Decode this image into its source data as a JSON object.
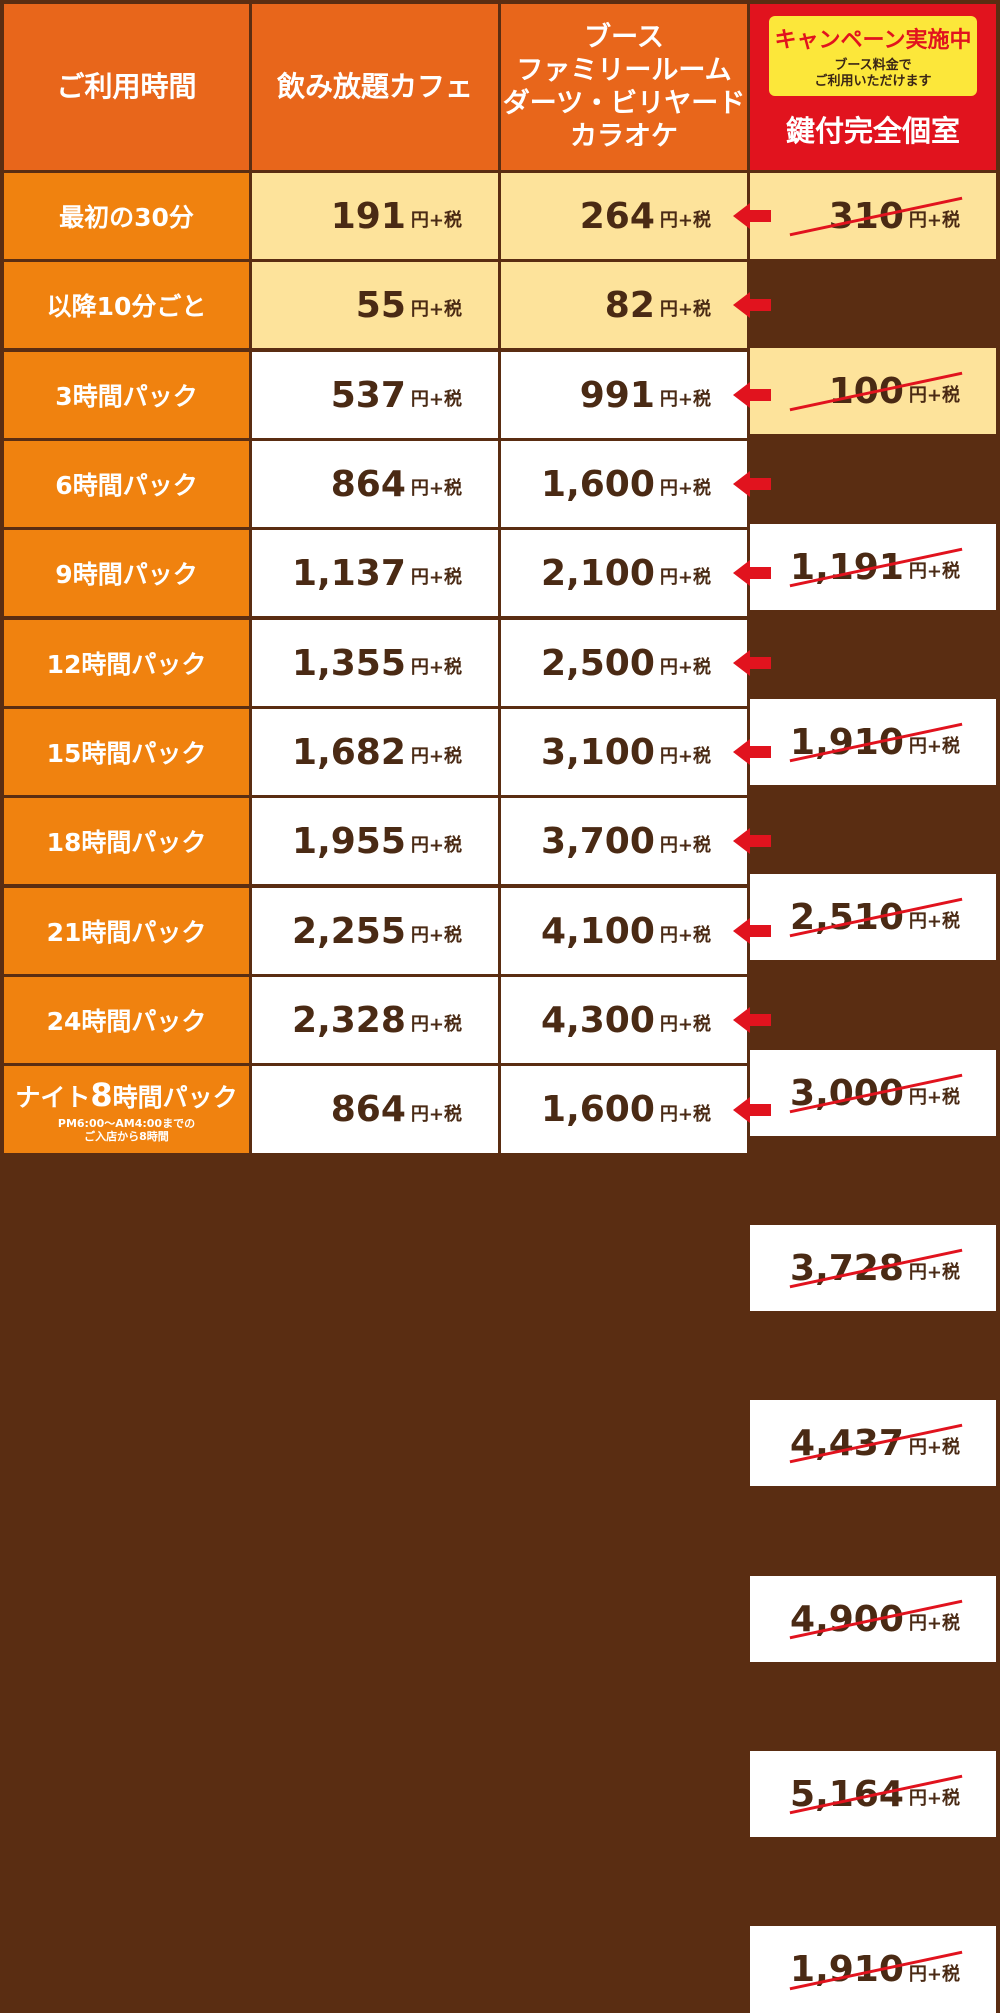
{
  "header": {
    "col1": "ご利用時間",
    "col2": "飲み放題カフェ",
    "col3_lines": [
      "ブース",
      "ファミリールーム",
      "ダーツ・ビリヤード",
      "カラオケ"
    ],
    "campaign_title": "キャンペーン実施中",
    "campaign_note_lines": [
      "ブース料金で",
      "ご利用いただけます"
    ],
    "col4": "鍵付完全個室"
  },
  "unit": "円+税",
  "rows": [
    {
      "label": "最初の30分",
      "cafe": "191",
      "booth": "264",
      "private": "310",
      "bg": "yellow"
    },
    {
      "label": "以降10分ごと",
      "cafe": "55",
      "booth": "82",
      "private": "100",
      "bg": "yellow"
    },
    {
      "label": "3時間パック",
      "cafe": "537",
      "booth": "991",
      "private": "1,191",
      "bg": "white"
    },
    {
      "label": "6時間パック",
      "cafe": "864",
      "booth": "1,600",
      "private": "1,910",
      "bg": "white"
    },
    {
      "label": "9時間パック",
      "cafe": "1,137",
      "booth": "2,100",
      "private": "2,510",
      "bg": "white"
    },
    {
      "label": "12時間パック",
      "cafe": "1,355",
      "booth": "2,500",
      "private": "3,000",
      "bg": "white"
    },
    {
      "label": "15時間パック",
      "cafe": "1,682",
      "booth": "3,100",
      "private": "3,728",
      "bg": "white"
    },
    {
      "label": "18時間パック",
      "cafe": "1,955",
      "booth": "3,700",
      "private": "4,437",
      "bg": "white"
    },
    {
      "label": "21時間パック",
      "cafe": "2,255",
      "booth": "4,100",
      "private": "4,900",
      "bg": "white"
    },
    {
      "label": "24時間パック",
      "cafe": "2,328",
      "booth": "4,300",
      "private": "5,164",
      "bg": "white"
    },
    {
      "label": "ナイト8時間パック",
      "label_prefix": "ナイト",
      "label_big": "8",
      "label_suffix": "時間パック",
      "label_sub_lines": [
        "PM6:00〜AM4:00までの",
        "ご入店から8時間"
      ],
      "cafe": "864",
      "booth": "1,600",
      "private": "1,910",
      "bg": "white"
    }
  ],
  "colors": {
    "header_orange": "#e8661b",
    "label_orange": "#f0820f",
    "campaign_red": "#e1131e",
    "campaign_yellow": "#fce73a",
    "row_yellow": "#fde39b",
    "text_brown": "#4a2a14"
  },
  "icons": {
    "arrow": "red-left-arrow-icon"
  }
}
